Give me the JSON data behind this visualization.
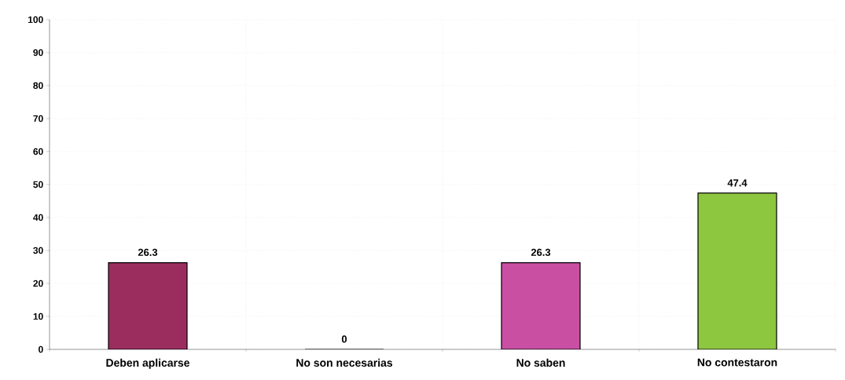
{
  "chart_data": {
    "type": "bar",
    "categories": [
      "Deben aplicarse",
      "No son necesarias",
      "No saben",
      "No contestaron"
    ],
    "values": [
      26.3,
      0,
      26.3,
      47.4
    ],
    "colors": [
      "#9b2d5e",
      "#c94fa3",
      "#c94fa3",
      "#8dc63f"
    ],
    "ylim": [
      0,
      100
    ],
    "yticks": [
      0,
      10,
      20,
      30,
      40,
      50,
      60,
      70,
      80,
      90,
      100
    ],
    "grid": true,
    "data_labels": true
  }
}
